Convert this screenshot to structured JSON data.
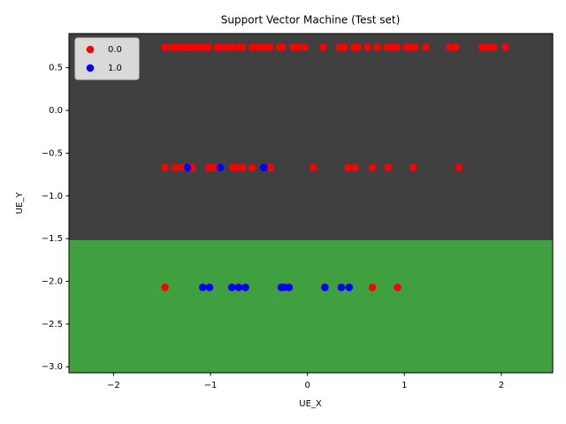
{
  "chart_data": {
    "type": "scatter",
    "title": "Support Vector Machine (Test set)",
    "xlabel": "UE_X",
    "ylabel": "UE_Y",
    "xlim": [
      -2.46,
      2.53
    ],
    "ylim": [
      -3.07,
      0.9
    ],
    "xticks": [
      {
        "value": -2,
        "label": "−2"
      },
      {
        "value": -1,
        "label": "−1"
      },
      0,
      1,
      2
    ],
    "yticks": [
      {
        "value": -3.0,
        "label": "−3.0"
      },
      {
        "value": -2.5,
        "label": "−2.5"
      },
      {
        "value": -2.0,
        "label": "−2.0"
      },
      {
        "value": -1.5,
        "label": "−1.5"
      },
      {
        "value": -1.0,
        "label": "−1.0"
      },
      {
        "value": -0.5,
        "label": "−0.5"
      },
      {
        "value": 0,
        "label": "0.0"
      },
      0.5
    ],
    "regions": [
      {
        "color": "#404040",
        "ylim": [
          -1.52,
          0.9
        ]
      },
      {
        "color": "#40a040",
        "ylim": [
          -3.07,
          -1.52
        ]
      }
    ],
    "legend": "upper left",
    "series": [
      {
        "name": "0.0",
        "color": "#ff0000",
        "x": [
          -1.47,
          -1.4,
          -1.36,
          -1.31,
          -1.28,
          -1.23,
          -1.19,
          -1.15,
          -1.11,
          -1.07,
          -1.02,
          -0.93,
          -0.88,
          -0.82,
          -0.78,
          -0.71,
          -0.67,
          -0.57,
          -0.51,
          -0.45,
          -0.39,
          -0.29,
          -0.26,
          -0.15,
          -0.1,
          -0.03,
          0.16,
          0.33,
          0.38,
          0.48,
          0.52,
          0.62,
          0.72,
          0.82,
          0.88,
          0.92,
          1.02,
          1.07,
          1.11,
          1.22,
          1.46,
          1.53,
          1.8,
          1.86,
          1.92,
          2.04,
          -1.47,
          -1.36,
          -1.29,
          -1.19,
          -1.02,
          -0.98,
          -0.92,
          -0.77,
          -0.73,
          -0.67,
          -0.57,
          -0.38,
          0.06,
          0.42,
          0.49,
          0.67,
          0.83,
          1.09,
          1.56,
          -1.47,
          0.67,
          0.93
        ],
        "y": [
          0.74,
          0.74,
          0.74,
          0.74,
          0.74,
          0.74,
          0.74,
          0.74,
          0.74,
          0.74,
          0.74,
          0.74,
          0.74,
          0.74,
          0.74,
          0.74,
          0.74,
          0.74,
          0.74,
          0.74,
          0.74,
          0.74,
          0.74,
          0.74,
          0.74,
          0.74,
          0.74,
          0.74,
          0.74,
          0.74,
          0.74,
          0.74,
          0.74,
          0.74,
          0.74,
          0.74,
          0.74,
          0.74,
          0.74,
          0.74,
          0.74,
          0.74,
          0.74,
          0.74,
          0.74,
          0.74,
          -0.67,
          -0.67,
          -0.67,
          -0.67,
          -0.67,
          -0.67,
          -0.67,
          -0.67,
          -0.67,
          -0.67,
          -0.67,
          -0.67,
          -0.67,
          -0.67,
          -0.67,
          -0.67,
          -0.67,
          -0.67,
          -0.67,
          -2.07,
          -2.07,
          -2.07
        ]
      },
      {
        "name": "1.0",
        "color": "#0000ff",
        "x": [
          -1.24,
          -0.9,
          -0.45,
          -1.08,
          -1.01,
          -0.78,
          -0.71,
          -0.64,
          -0.27,
          -0.24,
          -0.19,
          0.18,
          0.35,
          0.43
        ],
        "y": [
          -0.67,
          -0.67,
          -0.67,
          -2.07,
          -2.07,
          -2.07,
          -2.07,
          -2.07,
          -2.07,
          -2.07,
          -2.07,
          -2.07,
          -2.07,
          -2.07
        ]
      }
    ]
  }
}
